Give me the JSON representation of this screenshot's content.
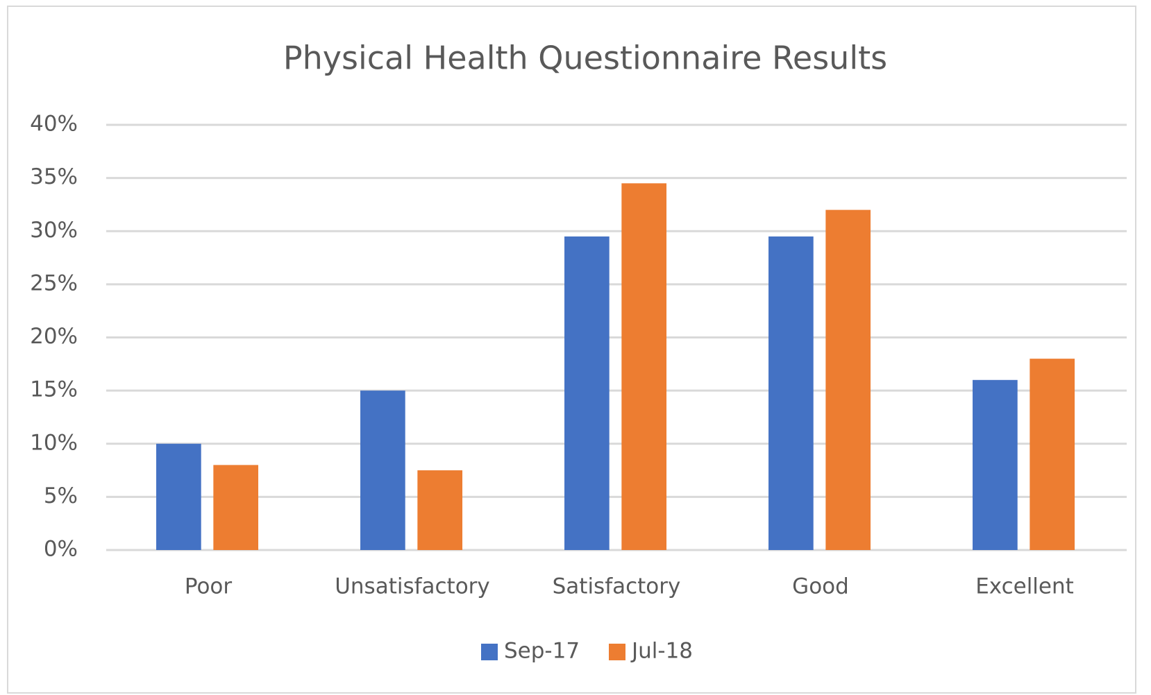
{
  "chart_data": {
    "type": "bar",
    "title": "Physical Health Questionnaire Results",
    "categories": [
      "Poor",
      "Unsatisfactory",
      "Satisfactory",
      "Good",
      "Excellent"
    ],
    "series": [
      {
        "name": "Sep-17",
        "color": "#4472c4",
        "values": [
          10,
          15,
          29.5,
          29.5,
          16
        ]
      },
      {
        "name": "Jul-18",
        "color": "#ed7d31",
        "values": [
          8,
          7.5,
          34.5,
          32,
          18
        ]
      }
    ],
    "ylim": [
      0,
      40
    ],
    "yticks": [
      {
        "value": 0,
        "label": "0%"
      },
      {
        "value": 5,
        "label": "5%"
      },
      {
        "value": 10,
        "label": "10%"
      },
      {
        "value": 15,
        "label": "15%"
      },
      {
        "value": 20,
        "label": "20%"
      },
      {
        "value": 25,
        "label": "25%"
      },
      {
        "value": 30,
        "label": "30%"
      },
      {
        "value": 35,
        "label": "35%"
      },
      {
        "value": 40,
        "label": "40%"
      }
    ],
    "grid": true,
    "legend": "bottom"
  }
}
